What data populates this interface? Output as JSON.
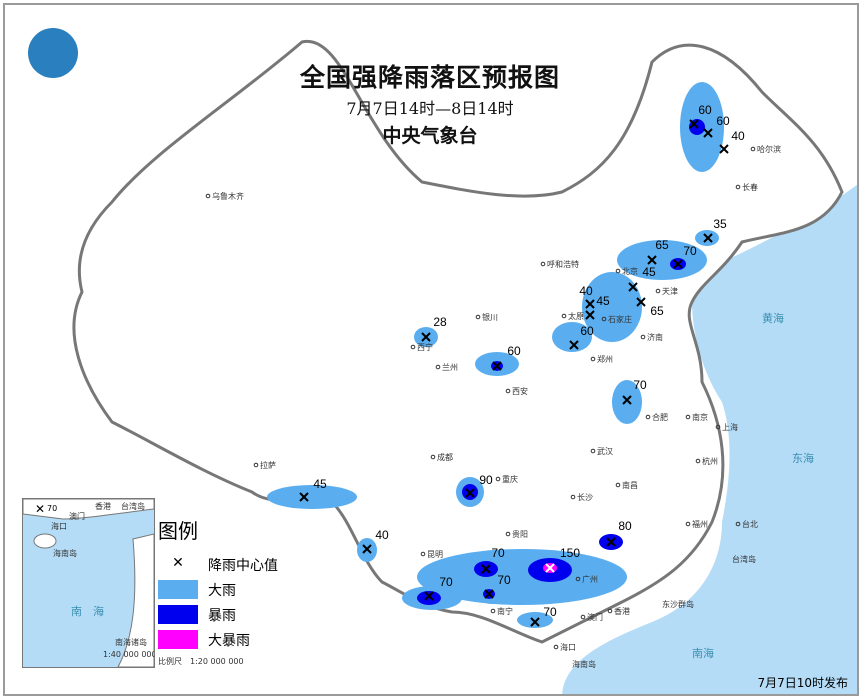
{
  "title": "全国强降雨落区预报图",
  "period": "7月7日14时—8日14时",
  "agency": "中央气象台",
  "issued": "7月7日10时发布",
  "legend": {
    "title": "图例",
    "items": [
      {
        "label": "降雨中心值",
        "symbol": "x"
      },
      {
        "label": "大雨",
        "color": "#5aaef0"
      },
      {
        "label": "暴雨",
        "color": "#0000ee"
      },
      {
        "label": "大暴雨",
        "color": "#ff00ff"
      }
    ],
    "scale": "比例尺　1:20 000 000"
  },
  "inset": {
    "name": "南海诸岛",
    "scale": "1:40 000 000",
    "sea": "南　海",
    "labels": [
      "香港",
      "台湾岛",
      "澳门",
      "海口",
      "海南岛"
    ],
    "center_value": "70"
  },
  "rain_centers": [
    {
      "value": "60",
      "level": "暴雨"
    },
    {
      "value": "60",
      "level": "暴雨"
    },
    {
      "value": "40",
      "level": "大雨"
    },
    {
      "value": "35",
      "level": "大雨"
    },
    {
      "value": "65",
      "level": "暴雨"
    },
    {
      "value": "70",
      "level": "暴雨"
    },
    {
      "value": "45",
      "level": "大雨"
    },
    {
      "value": "40",
      "level": "大雨"
    },
    {
      "value": "45",
      "level": "大雨"
    },
    {
      "value": "65",
      "level": "暴雨"
    },
    {
      "value": "60",
      "level": "暴雨"
    },
    {
      "value": "28",
      "level": "大雨"
    },
    {
      "value": "60",
      "level": "暴雨"
    },
    {
      "value": "70",
      "level": "暴雨"
    },
    {
      "value": "90",
      "level": "暴雨"
    },
    {
      "value": "45",
      "level": "大雨"
    },
    {
      "value": "40",
      "level": "大雨"
    },
    {
      "value": "80",
      "level": "暴雨"
    },
    {
      "value": "150",
      "level": "大暴雨"
    },
    {
      "value": "70",
      "level": "暴雨"
    },
    {
      "value": "70",
      "level": "暴雨"
    },
    {
      "value": "70",
      "level": "暴雨"
    },
    {
      "value": "70",
      "level": "暴雨"
    }
  ],
  "cities": [
    "乌鲁木齐",
    "哈尔滨",
    "长春",
    "呼和浩特",
    "北京",
    "天津",
    "太原",
    "石家庄",
    "济南",
    "银川",
    "西宁",
    "兰州",
    "西安",
    "郑州",
    "合肥",
    "南京",
    "上海",
    "杭州",
    "武汉",
    "成都",
    "重庆",
    "贵阳",
    "长沙",
    "南昌",
    "福州",
    "台北",
    "昆明",
    "南宁",
    "广州",
    "澳门",
    "香港",
    "海口",
    "拉萨"
  ],
  "seas": [
    "黄海",
    "东海",
    "南海",
    "台湾岛",
    "海南岛",
    "东沙群岛"
  ]
}
